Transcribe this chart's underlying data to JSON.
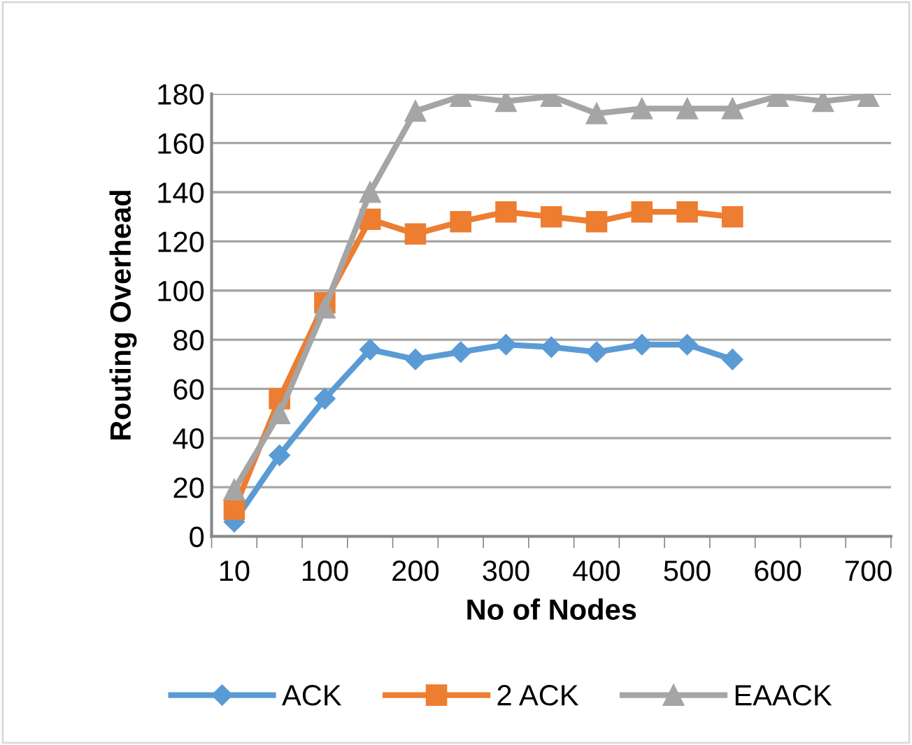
{
  "chart_data": {
    "type": "line",
    "xlabel": "No of Nodes",
    "ylabel": "Routing Overhead",
    "categories": [
      "10",
      null,
      "100",
      null,
      "200",
      null,
      "300",
      null,
      "400",
      null,
      "500",
      null,
      "600",
      null,
      "700"
    ],
    "series": [
      {
        "name": "ACK",
        "color": "#5b9bd5",
        "marker": "diamond",
        "values": [
          6,
          33,
          56,
          76,
          72,
          75,
          78,
          77,
          75,
          78,
          78,
          72,
          null,
          null,
          null
        ]
      },
      {
        "name": "2 ACK",
        "color": "#ed7d31",
        "marker": "square",
        "values": [
          11,
          56,
          95,
          129,
          123,
          128,
          132,
          130,
          128,
          132,
          132,
          130,
          null,
          null,
          null
        ]
      },
      {
        "name": "EAACK",
        "color": "#a5a5a5",
        "marker": "triangle",
        "values": [
          19,
          50,
          93,
          140,
          173,
          179,
          177,
          179,
          172,
          174,
          174,
          174,
          179,
          177,
          179
        ]
      }
    ],
    "ylim": [
      0,
      180
    ],
    "yticks": [
      0,
      20,
      40,
      60,
      80,
      100,
      120,
      140,
      160,
      180
    ],
    "grid": "y",
    "legend": "bottom",
    "line_style": "solid"
  }
}
